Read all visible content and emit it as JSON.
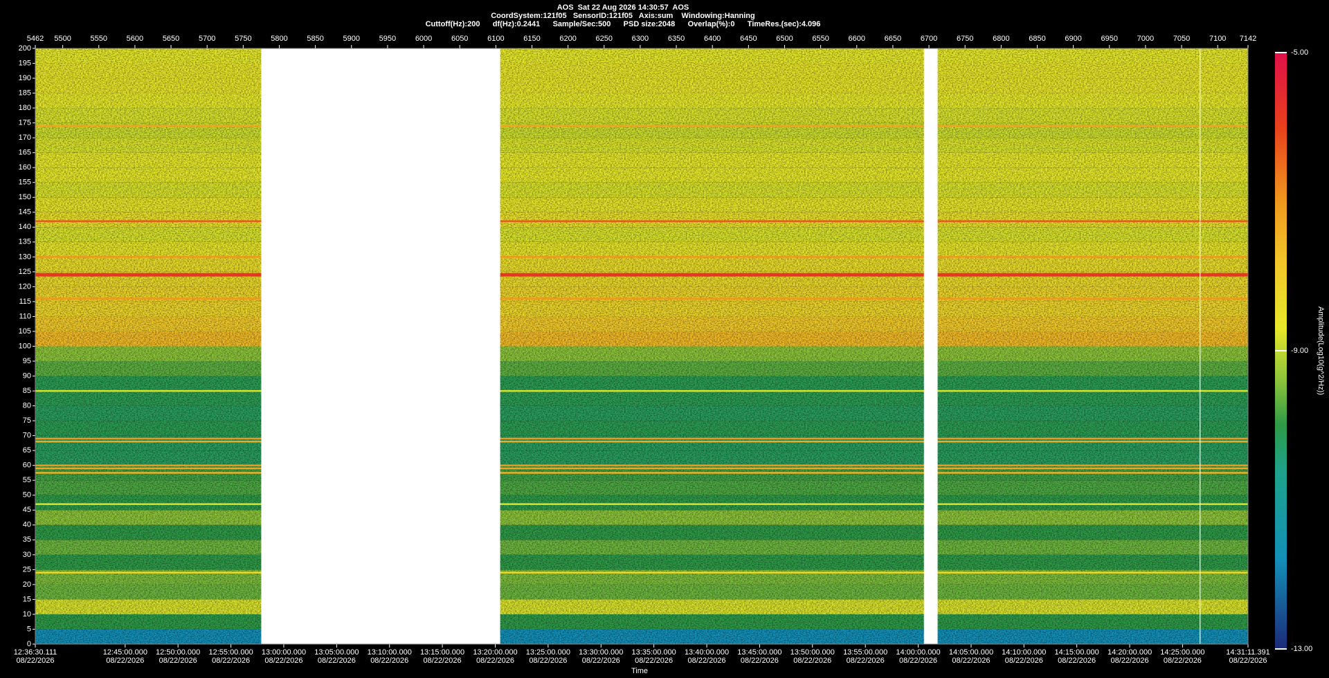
{
  "chart_data": {
    "type": "spectrogram",
    "title": "AOS  Sat 22 Aug 2026 14:30:57  AOS",
    "subtitle": [
      "CoordSystem:121f05   SensorID:121f05   Axis:sum    Windowing:Hanning",
      "Cuttoff(Hz):200      df(Hz):0.2441      Sample/Sec:500      PSD size:2048      Overlap(%):0      TimeRes.(sec):4.096"
    ],
    "xlabel": "Time",
    "colorbar_label": "Amplitude(Log10(g^2/Hz))",
    "xlim": [
      5462,
      7142
    ],
    "xticks": [
      5462,
      5500,
      5550,
      5600,
      5650,
      5700,
      5750,
      5800,
      5850,
      5900,
      5950,
      6000,
      6050,
      6100,
      6150,
      6200,
      6250,
      6300,
      6350,
      6400,
      6450,
      6500,
      6550,
      6600,
      6650,
      6700,
      6750,
      6800,
      6850,
      6900,
      6950,
      7000,
      7050,
      7100,
      7142
    ],
    "ylim": [
      0,
      200
    ],
    "yticks": [
      0,
      5,
      10,
      15,
      20,
      25,
      30,
      35,
      40,
      45,
      50,
      55,
      60,
      65,
      70,
      75,
      80,
      85,
      90,
      95,
      100,
      105,
      110,
      115,
      120,
      125,
      130,
      135,
      140,
      145,
      150,
      155,
      160,
      165,
      170,
      175,
      180,
      185,
      190,
      195,
      200
    ],
    "time_ticks": [
      {
        "value": 5462,
        "label": "12:36:30.111"
      },
      {
        "value": 5586.5,
        "label": "12:45:00.000"
      },
      {
        "value": 5659.7,
        "label": "12:50:00.000"
      },
      {
        "value": 5733.0,
        "label": "12:55:00.000"
      },
      {
        "value": 5806.2,
        "label": "13:00:00.000"
      },
      {
        "value": 5879.5,
        "label": "13:05:00.000"
      },
      {
        "value": 5952.7,
        "label": "13:10:00.000"
      },
      {
        "value": 6025.9,
        "label": "13:15:00.000"
      },
      {
        "value": 6099.2,
        "label": "13:20:00.000"
      },
      {
        "value": 6172.4,
        "label": "13:25:00.000"
      },
      {
        "value": 6245.7,
        "label": "13:30:00.000"
      },
      {
        "value": 6318.9,
        "label": "13:35:00.000"
      },
      {
        "value": 6392.2,
        "label": "13:40:00.000"
      },
      {
        "value": 6465.4,
        "label": "13:45:00.000"
      },
      {
        "value": 6538.6,
        "label": "13:50:00.000"
      },
      {
        "value": 6611.9,
        "label": "13:55:00.000"
      },
      {
        "value": 6685.1,
        "label": "14:00:00.000"
      },
      {
        "value": 6758.4,
        "label": "14:05:00.000"
      },
      {
        "value": 6831.6,
        "label": "14:10:00.000"
      },
      {
        "value": 6904.8,
        "label": "14:15:00.000"
      },
      {
        "value": 6978.1,
        "label": "14:20:00.000"
      },
      {
        "value": 7051.3,
        "label": "14:25:00.000"
      },
      {
        "value": 7142,
        "label": "14:31:11.391"
      }
    ],
    "time_tick_dates": [
      "08/22/2026",
      "08/22/2026",
      "08/22/2026",
      "08/22/2026",
      "08/22/2026",
      "08/22/2026",
      "08/22/2026",
      "08/22/2026",
      "08/22/2026",
      "08/22/2026",
      "08/22/2026",
      "08/22/2026",
      "08/22/2026",
      "08/22/2026",
      "08/22/2026",
      "08/22/2026",
      "08/22/2026",
      "08/22/2026",
      "08/22/2026",
      "08/22/2026",
      "08/22/2026",
      "08/22/2026",
      "08/22/2026"
    ],
    "clim": [
      -13,
      -5
    ],
    "cticks": [
      {
        "value": -13,
        "label": "-13.00"
      },
      {
        "value": -9,
        "label": "-9.00"
      },
      {
        "value": -5,
        "label": "-5.00"
      }
    ],
    "colormap": [
      {
        "value": -13,
        "color": "#1c2a78"
      },
      {
        "value": -11.8,
        "color": "#1390b8"
      },
      {
        "value": -10.6,
        "color": "#1ea38a"
      },
      {
        "value": -10,
        "color": "#2e9a48"
      },
      {
        "value": -9.4,
        "color": "#8cc43a"
      },
      {
        "value": -8.7,
        "color": "#e6e82a"
      },
      {
        "value": -7.8,
        "color": "#f2c62a"
      },
      {
        "value": -7,
        "color": "#f0981e"
      },
      {
        "value": -6,
        "color": "#e8401c"
      },
      {
        "value": -5,
        "color": "#e0104a"
      }
    ],
    "spectrum": {
      "bins": [
        0,
        5,
        10,
        15,
        20,
        25,
        30,
        35,
        40,
        45,
        50,
        55,
        60,
        65,
        70,
        75,
        80,
        85,
        90,
        95,
        100,
        105,
        110,
        115,
        120,
        125,
        130,
        135,
        140,
        145,
        150,
        155,
        160,
        165,
        170,
        175,
        180,
        185,
        190,
        195,
        200
      ],
      "values": [
        -11.8,
        -10.0,
        -8.8,
        -9.6,
        -9.5,
        -10.0,
        -9.6,
        -10.0,
        -9.4,
        -10.0,
        -9.8,
        -9.9,
        -10.2,
        -10.2,
        -10.1,
        -10.2,
        -10.1,
        -10.1,
        -9.7,
        -9.4,
        -7.6,
        -7.9,
        -8.2,
        -8.2,
        -8.3,
        -8.4,
        -8.6,
        -8.8,
        -8.5,
        -8.6,
        -8.8,
        -8.7,
        -8.7,
        -8.8,
        -8.9,
        -8.8,
        -8.7,
        -8.6,
        -8.6,
        -8.7
      ]
    },
    "lines": {
      "frequencies": [
        24,
        47,
        57.5,
        59,
        60,
        68,
        69,
        85,
        116,
        124,
        130,
        142,
        174
      ],
      "values": [
        -8.3,
        -8.8,
        -7.4,
        -7.2,
        -7.0,
        -7.3,
        -7.0,
        -8.8,
        -7.0,
        -5.8,
        -7.0,
        -6.3,
        -7.2
      ]
    },
    "gaps": [
      [
        5775,
        6106
      ],
      [
        6693,
        6712
      ],
      [
        7075,
        7076
      ]
    ]
  }
}
